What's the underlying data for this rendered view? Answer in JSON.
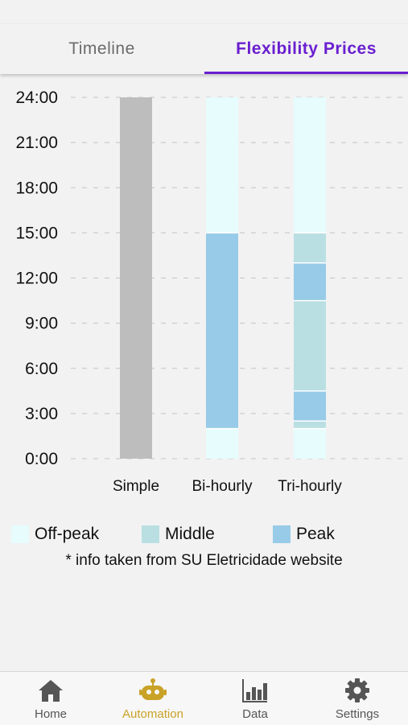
{
  "tabs": {
    "timeline_label": "Timeline",
    "flex_label": "Flexibility Prices",
    "active_color": "#6a1fd0"
  },
  "chart_data": {
    "type": "bar",
    "subtype": "stacked-interval",
    "title": "",
    "xlabel": "",
    "ylabel": "",
    "categories": [
      "Simple",
      "Bi-hourly",
      "Tri-hourly"
    ],
    "y_tick_labels": [
      "0:00",
      "3:00",
      "6:00",
      "9:00",
      "12:00",
      "15:00",
      "18:00",
      "21:00",
      "24:00"
    ],
    "ylim": [
      0,
      24
    ],
    "grid": true,
    "bars": [
      {
        "category": "Simple",
        "segments": [
          {
            "from": 0,
            "to": 24,
            "tariff": "Simple"
          }
        ]
      },
      {
        "category": "Bi-hourly",
        "segments": [
          {
            "from": 0,
            "to": 2,
            "tariff": "Off-peak"
          },
          {
            "from": 2,
            "to": 15,
            "tariff": "Peak"
          },
          {
            "from": 15,
            "to": 24,
            "tariff": "Off-peak"
          }
        ]
      },
      {
        "category": "Tri-hourly",
        "segments": [
          {
            "from": 0,
            "to": 2,
            "tariff": "Off-peak"
          },
          {
            "from": 2,
            "to": 2.5,
            "tariff": "Middle"
          },
          {
            "from": 2.5,
            "to": 4.5,
            "tariff": "Peak"
          },
          {
            "from": 4.5,
            "to": 10.5,
            "tariff": "Middle"
          },
          {
            "from": 10.5,
            "to": 13,
            "tariff": "Peak"
          },
          {
            "from": 13,
            "to": 15,
            "tariff": "Middle"
          },
          {
            "from": 15,
            "to": 24,
            "tariff": "Off-peak"
          }
        ]
      }
    ],
    "colors": {
      "Simple": "#bdbdbd",
      "Off-peak": "#e6fcfd",
      "Middle": "#b9dfe2",
      "Peak": "#97cbe8"
    }
  },
  "legend": {
    "items": [
      {
        "label": "Off-peak",
        "color": "#e6fcfd"
      },
      {
        "label": "Middle",
        "color": "#b9dfe2"
      },
      {
        "label": "Peak",
        "color": "#97cbe8"
      }
    ],
    "note": "* info taken from SU Eletricidade website"
  },
  "nav": {
    "active_color": "#c9a227",
    "inactive_color": "#555555",
    "items": [
      {
        "label": "Home",
        "icon": "home-icon",
        "active": false
      },
      {
        "label": "Automation",
        "icon": "robot-icon",
        "active": true
      },
      {
        "label": "Data",
        "icon": "bar-chart-icon",
        "active": false
      },
      {
        "label": "Settings",
        "icon": "gear-icon",
        "active": false
      }
    ]
  }
}
